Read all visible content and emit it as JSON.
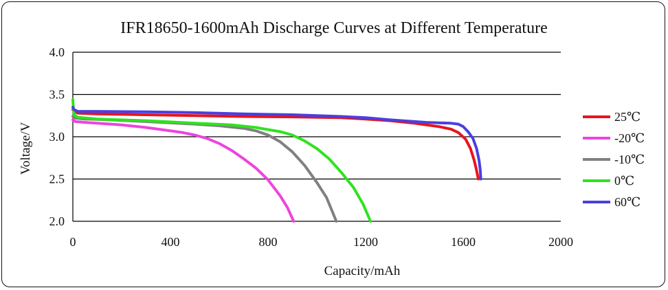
{
  "chart_data": {
    "type": "line",
    "title": "IFR18650-1600mAh Discharge Curves at Different Temperature",
    "xlabel": "Capacity/mAh",
    "ylabel": "Voltage/V",
    "xlim": [
      0,
      2000
    ],
    "ylim": [
      2.0,
      4.0
    ],
    "xticks": [
      "0",
      "400",
      "800",
      "1200",
      "1600",
      "2000"
    ],
    "yticks": [
      "2.0",
      "2.5",
      "3.0",
      "3.5",
      "4.0"
    ],
    "grid": "horizontal",
    "legend_position": "right",
    "series": [
      {
        "name": "25℃",
        "color": "#e8141c",
        "points": [
          [
            0,
            3.32
          ],
          [
            5,
            3.3
          ],
          [
            20,
            3.28
          ],
          [
            100,
            3.27
          ],
          [
            300,
            3.26
          ],
          [
            500,
            3.25
          ],
          [
            700,
            3.24
          ],
          [
            900,
            3.235
          ],
          [
            1100,
            3.225
          ],
          [
            1200,
            3.21
          ],
          [
            1300,
            3.19
          ],
          [
            1400,
            3.16
          ],
          [
            1450,
            3.14
          ],
          [
            1500,
            3.12
          ],
          [
            1550,
            3.09
          ],
          [
            1580,
            3.05
          ],
          [
            1610,
            2.97
          ],
          [
            1630,
            2.86
          ],
          [
            1645,
            2.72
          ],
          [
            1655,
            2.6
          ],
          [
            1662,
            2.5
          ]
        ]
      },
      {
        "name": "-20℃",
        "color": "#ee44dd",
        "points": [
          [
            0,
            3.2
          ],
          [
            10,
            3.18
          ],
          [
            50,
            3.17
          ],
          [
            100,
            3.16
          ],
          [
            200,
            3.14
          ],
          [
            300,
            3.11
          ],
          [
            400,
            3.07
          ],
          [
            450,
            3.05
          ],
          [
            500,
            3.02
          ],
          [
            550,
            2.98
          ],
          [
            600,
            2.92
          ],
          [
            650,
            2.84
          ],
          [
            700,
            2.74
          ],
          [
            750,
            2.63
          ],
          [
            800,
            2.49
          ],
          [
            850,
            2.3
          ],
          [
            880,
            2.16
          ],
          [
            905,
            2.0
          ]
        ]
      },
      {
        "name": "-10℃",
        "color": "#808080",
        "points": [
          [
            0,
            3.24
          ],
          [
            10,
            3.22
          ],
          [
            50,
            3.21
          ],
          [
            150,
            3.2
          ],
          [
            300,
            3.18
          ],
          [
            500,
            3.15
          ],
          [
            600,
            3.13
          ],
          [
            700,
            3.1
          ],
          [
            750,
            3.07
          ],
          [
            800,
            3.02
          ],
          [
            850,
            2.94
          ],
          [
            900,
            2.82
          ],
          [
            950,
            2.66
          ],
          [
            1000,
            2.46
          ],
          [
            1040,
            2.28
          ],
          [
            1080,
            2.0
          ]
        ]
      },
      {
        "name": "0℃",
        "color": "#2ee31e",
        "points": [
          [
            0,
            3.44
          ],
          [
            2,
            3.35
          ],
          [
            5,
            3.26
          ],
          [
            20,
            3.23
          ],
          [
            100,
            3.21
          ],
          [
            300,
            3.19
          ],
          [
            500,
            3.16
          ],
          [
            650,
            3.14
          ],
          [
            750,
            3.11
          ],
          [
            850,
            3.06
          ],
          [
            900,
            3.02
          ],
          [
            950,
            2.95
          ],
          [
            1000,
            2.86
          ],
          [
            1050,
            2.74
          ],
          [
            1100,
            2.58
          ],
          [
            1150,
            2.4
          ],
          [
            1190,
            2.2
          ],
          [
            1220,
            2.0
          ]
        ]
      },
      {
        "name": "60℃",
        "color": "#4a3fe0",
        "points": [
          [
            0,
            3.35
          ],
          [
            5,
            3.32
          ],
          [
            20,
            3.3
          ],
          [
            100,
            3.3
          ],
          [
            300,
            3.295
          ],
          [
            500,
            3.285
          ],
          [
            700,
            3.27
          ],
          [
            900,
            3.26
          ],
          [
            1100,
            3.24
          ],
          [
            1200,
            3.225
          ],
          [
            1300,
            3.2
          ],
          [
            1400,
            3.18
          ],
          [
            1450,
            3.17
          ],
          [
            1500,
            3.165
          ],
          [
            1550,
            3.16
          ],
          [
            1580,
            3.15
          ],
          [
            1600,
            3.12
          ],
          [
            1620,
            3.06
          ],
          [
            1640,
            2.98
          ],
          [
            1655,
            2.86
          ],
          [
            1665,
            2.72
          ],
          [
            1670,
            2.6
          ],
          [
            1672,
            2.5
          ]
        ]
      }
    ]
  }
}
